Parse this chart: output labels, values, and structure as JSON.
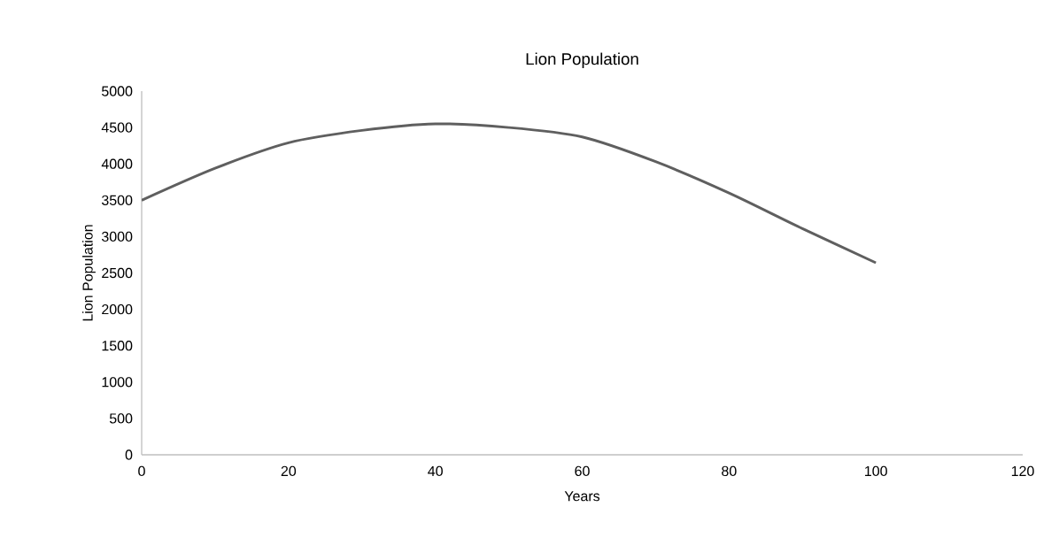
{
  "chart_data": {
    "type": "line",
    "title": "Lion Population",
    "xlabel": "Years",
    "ylabel": "Lion Population",
    "x": [
      0,
      10,
      20,
      30,
      40,
      50,
      60,
      70,
      80,
      90,
      100
    ],
    "series": [
      {
        "color": "#5f5f5f",
        "values": [
          3500,
          3940,
          4290,
          4460,
          4550,
          4500,
          4370,
          4030,
          3600,
          3110,
          2640
        ]
      }
    ],
    "xlim": [
      0,
      120
    ],
    "xticks": [
      0,
      20,
      40,
      60,
      80,
      100,
      120
    ],
    "ylim": [
      0,
      5000
    ],
    "yticks": [
      0,
      500,
      1000,
      1500,
      2000,
      2500,
      3000,
      3500,
      4000,
      4500,
      5000
    ],
    "grid": false,
    "marker": "none",
    "line_style": "solid"
  }
}
